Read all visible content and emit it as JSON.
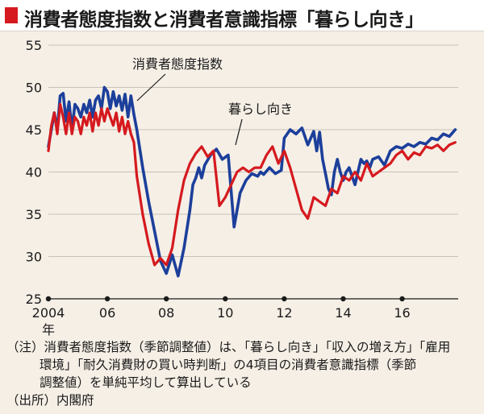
{
  "title": "消費者態度指数と消費者意識指標「暮らし向き」",
  "colors": {
    "accent": "#d5191e",
    "background": "#f5efe6"
  },
  "chart_data": {
    "type": "line",
    "xlim": [
      2004,
      2017.9
    ],
    "ylim": [
      25,
      55
    ],
    "yticks": [
      25,
      30,
      35,
      40,
      45,
      50,
      55
    ],
    "xtick_positions": [
      2004,
      2006,
      2008,
      2010,
      2012,
      2014,
      2016
    ],
    "xtick_labels": [
      "2004",
      "06",
      "08",
      "10",
      "12",
      "14",
      "16"
    ],
    "xunit": "年",
    "series": [
      {
        "name": "消費者態度指数",
        "color": "#1c3f9b",
        "x": [
          2004.0,
          2004.2,
          2004.3,
          2004.4,
          2004.5,
          2004.6,
          2004.7,
          2004.8,
          2004.9,
          2005.0,
          2005.1,
          2005.2,
          2005.3,
          2005.4,
          2005.5,
          2005.6,
          2005.7,
          2005.8,
          2005.9,
          2006.0,
          2006.1,
          2006.2,
          2006.3,
          2006.4,
          2006.5,
          2006.6,
          2006.7,
          2006.8,
          2006.9,
          2007.0,
          2007.2,
          2007.4,
          2007.6,
          2007.8,
          2008.0,
          2008.2,
          2008.4,
          2008.6,
          2008.8,
          2008.9,
          2009.0,
          2009.1,
          2009.2,
          2009.3,
          2009.5,
          2009.7,
          2009.9,
          2010.1,
          2010.3,
          2010.5,
          2010.7,
          2010.9,
          2011.1,
          2011.2,
          2011.3,
          2011.5,
          2011.7,
          2011.9,
          2012.0,
          2012.2,
          2012.4,
          2012.6,
          2012.8,
          2013.0,
          2013.1,
          2013.2,
          2013.3,
          2013.4,
          2013.5,
          2013.6,
          2013.7,
          2013.8,
          2013.9,
          2014.0,
          2014.1,
          2014.2,
          2014.3,
          2014.4,
          2014.5,
          2014.6,
          2014.7,
          2014.8,
          2014.9,
          2015.0,
          2015.2,
          2015.4,
          2015.6,
          2015.8,
          2016.0,
          2016.2,
          2016.4,
          2016.6,
          2016.8,
          2017.0,
          2017.2,
          2017.4,
          2017.6,
          2017.8
        ],
        "y": [
          43.0,
          47.0,
          45.0,
          49.0,
          49.3,
          46.0,
          48.3,
          45.0,
          48.0,
          47.5,
          46.5,
          48.0,
          47.0,
          48.5,
          46.5,
          48.5,
          49.0,
          47.5,
          50.0,
          49.5,
          47.5,
          49.5,
          47.8,
          49.0,
          47.3,
          49.2,
          46.5,
          49.0,
          46.8,
          45.0,
          40.5,
          36.5,
          33.0,
          29.5,
          28.0,
          30.2,
          27.7,
          31.0,
          35.5,
          38.5,
          39.3,
          40.5,
          39.3,
          40.8,
          42.0,
          42.7,
          41.5,
          42.0,
          33.5,
          37.5,
          39.0,
          39.8,
          39.5,
          40.0,
          39.7,
          40.5,
          39.8,
          40.2,
          44.0,
          45.0,
          44.5,
          45.2,
          43.2,
          44.8,
          42.5,
          44.7,
          41.5,
          39.8,
          38.0,
          37.3,
          40.0,
          41.5,
          40.0,
          39.0,
          40.0,
          40.5,
          39.5,
          38.5,
          40.0,
          41.5,
          41.0,
          41.3,
          40.5,
          41.5,
          41.8,
          40.8,
          42.5,
          43.0,
          42.8,
          43.3,
          43.0,
          43.5,
          43.3,
          44.0,
          43.8,
          44.5,
          44.2,
          45.0
        ]
      },
      {
        "name": "暮らし向き",
        "color": "#d5191e",
        "x": [
          2004.0,
          2004.1,
          2004.2,
          2004.3,
          2004.4,
          2004.5,
          2004.6,
          2004.7,
          2004.8,
          2004.9,
          2005.0,
          2005.1,
          2005.2,
          2005.3,
          2005.4,
          2005.5,
          2005.6,
          2005.7,
          2005.8,
          2005.9,
          2006.0,
          2006.1,
          2006.2,
          2006.3,
          2006.4,
          2006.5,
          2006.6,
          2006.7,
          2006.8,
          2006.9,
          2007.0,
          2007.2,
          2007.4,
          2007.6,
          2007.8,
          2008.0,
          2008.2,
          2008.4,
          2008.6,
          2008.8,
          2009.0,
          2009.2,
          2009.4,
          2009.6,
          2009.8,
          2010.0,
          2010.2,
          2010.4,
          2010.6,
          2010.8,
          2011.0,
          2011.2,
          2011.4,
          2011.6,
          2011.8,
          2012.0,
          2012.2,
          2012.4,
          2012.6,
          2012.8,
          2013.0,
          2013.2,
          2013.4,
          2013.6,
          2013.8,
          2014.0,
          2014.2,
          2014.4,
          2014.6,
          2014.8,
          2015.0,
          2015.2,
          2015.4,
          2015.6,
          2015.8,
          2016.0,
          2016.2,
          2016.4,
          2016.6,
          2016.8,
          2017.0,
          2017.2,
          2017.4,
          2017.6,
          2017.8
        ],
        "y": [
          42.5,
          45.5,
          47.0,
          44.5,
          48.0,
          46.5,
          44.5,
          47.0,
          44.5,
          46.5,
          46.0,
          44.5,
          46.5,
          45.5,
          47.0,
          44.8,
          47.0,
          45.5,
          47.5,
          46.0,
          47.5,
          46.5,
          45.5,
          47.0,
          44.8,
          46.5,
          44.5,
          46.0,
          44.5,
          43.5,
          39.5,
          35.0,
          31.5,
          29.0,
          29.8,
          29.0,
          31.0,
          35.5,
          39.0,
          41.0,
          42.2,
          43.0,
          41.8,
          42.5,
          36.0,
          37.0,
          38.5,
          40.0,
          40.5,
          40.0,
          40.5,
          40.5,
          42.0,
          43.0,
          41.0,
          42.5,
          40.5,
          38.0,
          35.5,
          34.5,
          37.0,
          36.5,
          36.0,
          38.0,
          37.5,
          39.5,
          39.0,
          40.0,
          39.0,
          41.0,
          39.5,
          40.0,
          40.5,
          41.0,
          42.0,
          42.5,
          41.5,
          42.3,
          42.0,
          43.0,
          42.8,
          43.2,
          42.5,
          43.2,
          43.5
        ]
      }
    ],
    "annotations": [
      {
        "text": "消費者態度指数",
        "series": 0
      },
      {
        "text": "暮らし向き",
        "series": 1
      }
    ]
  },
  "notes": {
    "line1": "（注）消費者態度指数（季節調整値）は、「暮らし向き」「収入の増え方」「雇用",
    "line2": "環境」「耐久消費財の買い時判断」の4項目の消費者意識指標（季節",
    "line3": "調整値）を単純平均して算出している",
    "line4": "（出所）内閣府"
  }
}
